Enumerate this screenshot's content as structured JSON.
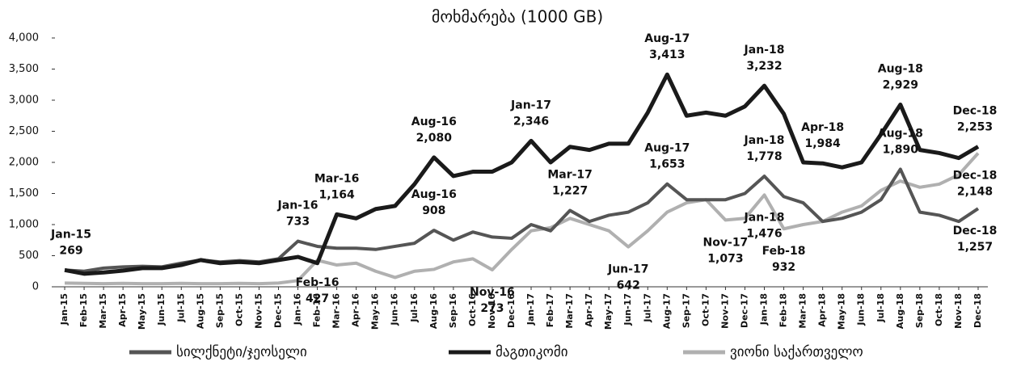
{
  "chart_data": {
    "type": "line",
    "title": "მოხმარება (1000 GB)",
    "categories": [
      "Jan-15",
      "Feb-15",
      "Mar-15",
      "Apr-15",
      "May-15",
      "Jun-15",
      "Jul-15",
      "Aug-15",
      "Sep-15",
      "Oct-15",
      "Nov-15",
      "Dec-15",
      "Jan-16",
      "Feb-16",
      "Mar-16",
      "Apr-16",
      "May-16",
      "Jun-16",
      "Jul-16",
      "Aug-16",
      "Sep-16",
      "Oct-16",
      "Nov-16",
      "Dec-16",
      "Jan-17",
      "Feb-17",
      "Mar-17",
      "Apr-17",
      "May-17",
      "Jun-17",
      "Jul-17",
      "Aug-17",
      "Sep-17",
      "Oct-17",
      "Nov-17",
      "Dec-17",
      "Jan-18",
      "Feb-18",
      "Mar-18",
      "Apr-18",
      "May-18",
      "Jun-18",
      "Jul-18",
      "Aug-18",
      "Sep-18",
      "Oct-18",
      "Nov-18",
      "Dec-18"
    ],
    "series": [
      {
        "name": "სილქნეტი/ჯეოსელი",
        "color": "#555555",
        "values": [
          270,
          250,
          300,
          320,
          330,
          320,
          380,
          430,
          400,
          420,
          400,
          450,
          733,
          650,
          620,
          620,
          600,
          650,
          700,
          908,
          750,
          880,
          800,
          780,
          1000,
          900,
          1227,
          1050,
          1150,
          1200,
          1350,
          1653,
          1400,
          1400,
          1400,
          1500,
          1778,
          1450,
          1350,
          1050,
          1100,
          1200,
          1400,
          1890,
          1200,
          1150,
          1050,
          1257
        ],
        "value_labels": [
          null,
          null,
          null,
          null,
          null,
          null,
          null,
          null,
          null,
          null,
          null,
          null,
          "733",
          null,
          null,
          null,
          null,
          null,
          null,
          "908",
          null,
          null,
          null,
          null,
          null,
          null,
          "1,227",
          null,
          null,
          null,
          null,
          "1,653",
          null,
          null,
          null,
          null,
          "1,778",
          null,
          null,
          null,
          null,
          null,
          null,
          "1,890",
          null,
          null,
          null,
          "1,257"
        ]
      },
      {
        "name": "მაგთიკომი",
        "color": "#1a1a1a",
        "values": [
          269,
          210,
          230,
          260,
          300,
          300,
          350,
          430,
          380,
          400,
          380,
          430,
          480,
          380,
          1164,
          1100,
          1250,
          1300,
          1650,
          2080,
          1780,
          1850,
          1850,
          2000,
          2346,
          2000,
          2250,
          2200,
          2300,
          2300,
          2800,
          3413,
          2750,
          2800,
          2750,
          2900,
          3232,
          2780,
          2000,
          1984,
          1920,
          2000,
          2450,
          2929,
          2200,
          2150,
          2070,
          2253
        ],
        "value_labels": [
          "269",
          null,
          null,
          null,
          null,
          null,
          null,
          null,
          null,
          null,
          null,
          null,
          null,
          null,
          "1,164",
          null,
          null,
          null,
          null,
          "2,080",
          null,
          null,
          null,
          null,
          "2,346",
          null,
          null,
          null,
          null,
          null,
          null,
          "3,413",
          null,
          null,
          null,
          null,
          "3,232",
          null,
          null,
          "1,984",
          null,
          null,
          null,
          "2,929",
          null,
          null,
          null,
          "2,253"
        ]
      },
      {
        "name": "ვიონი საქართველო",
        "color": "#b0b0b0",
        "values": [
          60,
          55,
          50,
          55,
          50,
          50,
          55,
          50,
          50,
          55,
          50,
          60,
          100,
          427,
          350,
          380,
          250,
          150,
          250,
          280,
          400,
          450,
          273,
          600,
          900,
          950,
          1100,
          1000,
          900,
          642,
          900,
          1200,
          1350,
          1400,
          1073,
          1100,
          1476,
          932,
          1000,
          1050,
          1200,
          1300,
          1550,
          1700,
          1600,
          1650,
          1800,
          2148
        ],
        "value_labels": [
          null,
          null,
          null,
          null,
          null,
          null,
          null,
          null,
          null,
          null,
          null,
          null,
          null,
          "427",
          null,
          null,
          null,
          null,
          null,
          null,
          null,
          null,
          "273",
          null,
          null,
          null,
          null,
          null,
          null,
          "642",
          null,
          null,
          null,
          null,
          "1,073",
          null,
          "1,476",
          "932",
          null,
          null,
          null,
          null,
          null,
          null,
          null,
          null,
          null,
          "2,148"
        ]
      }
    ],
    "ylim": [
      0,
      4000
    ],
    "yticks": [
      0,
      {
        "value": 500,
        "label": "500"
      },
      {
        "value": 1000,
        "label": "1,000"
      },
      {
        "value": 1500,
        "label": "1,500"
      },
      {
        "value": 2000,
        "label": "2,000"
      },
      {
        "value": 2500,
        "label": "2,500"
      },
      {
        "value": 3000,
        "label": "3,000"
      },
      {
        "value": 3500,
        "label": "3,500"
      },
      {
        "value": 4000,
        "label": "4,000"
      }
    ],
    "legend": "bottom"
  }
}
